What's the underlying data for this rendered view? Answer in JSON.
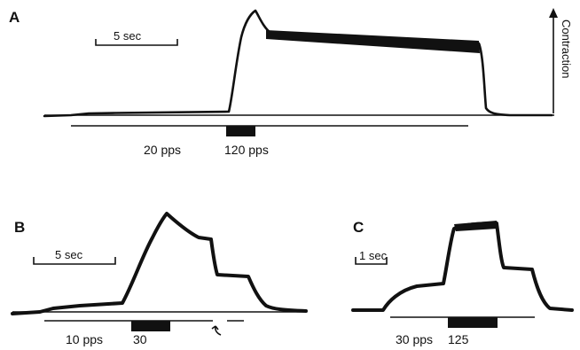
{
  "figure": {
    "panel_a": {
      "letter": "A",
      "scale_label": "5 sec",
      "axis_label": "Contraction",
      "stim_low": "20 pps",
      "stim_high": "120 pps"
    },
    "panel_b": {
      "letter": "B",
      "scale_label": "5 sec",
      "stim_low": "10 pps",
      "stim_high": "30"
    },
    "panel_c": {
      "letter": "C",
      "scale_label": "1 sec",
      "stim_low": "30 pps",
      "stim_high": "125"
    }
  }
}
